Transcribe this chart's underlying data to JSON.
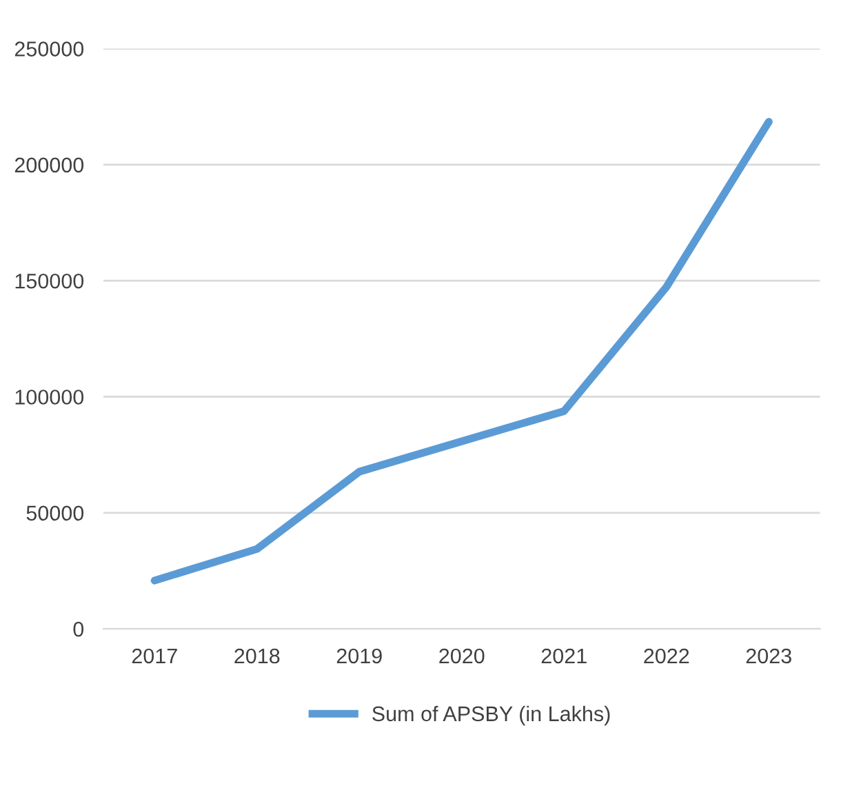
{
  "chart_data": {
    "type": "line",
    "categories": [
      "2017",
      "2018",
      "2019",
      "2020",
      "2021",
      "2022",
      "2023"
    ],
    "series": [
      {
        "name": "Sum of APSBY (in Lakhs)",
        "color": "#5b9bd5",
        "values": [
          20800,
          34400,
          67700,
          80800,
          93800,
          147300,
          218500
        ]
      }
    ],
    "ylim": [
      0,
      250000
    ],
    "yticks": [
      0,
      50000,
      100000,
      150000,
      200000,
      250000
    ],
    "grid": "y",
    "legend": "bottom",
    "marker": "none",
    "line_style": "solid"
  }
}
